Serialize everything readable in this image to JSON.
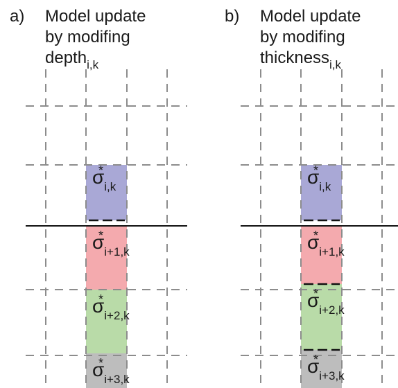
{
  "panels": [
    {
      "label": "a)",
      "title_lines": [
        "Model update",
        "by modifing",
        "depth"
      ],
      "title_subscript": "i,k",
      "cells": [
        {
          "symbol": "σ",
          "superscript": "*",
          "subscript": "i,k"
        },
        {
          "symbol": "σ",
          "superscript": "*",
          "subscript": "i+1,k"
        },
        {
          "symbol": "σ",
          "superscript": "*",
          "subscript": "i+2,k"
        },
        {
          "symbol": "σ",
          "superscript": "*",
          "subscript": "i+3,k"
        }
      ]
    },
    {
      "label": "b)",
      "title_lines": [
        "Model update",
        "by modifing",
        "thickness"
      ],
      "title_subscript": "i,k",
      "cells": [
        {
          "symbol": "σ",
          "superscript": "*",
          "subscript": "i,k"
        },
        {
          "symbol": "σ",
          "superscript": "*",
          "subscript": "i+1,k"
        },
        {
          "symbol": "σ",
          "superscript": "*",
          "subscript": "i+2,k"
        },
        {
          "symbol": "σ",
          "superscript": "*",
          "subscript": "i+3,k"
        }
      ]
    }
  ]
}
